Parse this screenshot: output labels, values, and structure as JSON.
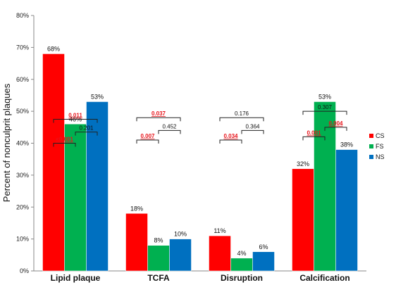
{
  "chart_data": {
    "type": "bar",
    "title": "",
    "xlabel": "",
    "ylabel": "Percent of nonculprit plaques",
    "ylim": [
      0,
      80
    ],
    "yticks": [
      "0%",
      "10%",
      "20%",
      "30%",
      "40%",
      "50%",
      "60%",
      "70%",
      "80%"
    ],
    "categories": [
      "Lipid plaque",
      "TCFA",
      "Disruption",
      "Calcification"
    ],
    "series": [
      {
        "name": "CS",
        "color": "#ff0000",
        "values": [
          68,
          18,
          11,
          32
        ],
        "labels": [
          "68%",
          "18%",
          "11%",
          "32%"
        ]
      },
      {
        "name": "FS",
        "color": "#00b050",
        "values": [
          46,
          8,
          4,
          53
        ],
        "labels": [
          "46%",
          "8%",
          "4%",
          "53%"
        ]
      },
      {
        "name": "NS",
        "color": "#0070c0",
        "values": [
          53,
          10,
          6,
          38
        ],
        "labels": [
          "53%",
          "10%",
          "6%",
          "38%"
        ]
      }
    ],
    "legend": {
      "position": "right",
      "entries": [
        "CS",
        "FS",
        "NS"
      ]
    },
    "comparisons": [
      {
        "category": 0,
        "from": 0,
        "to": 1,
        "label": "<0.001",
        "significant": true,
        "level": 40
      },
      {
        "category": 0,
        "from": 1,
        "to": 2,
        "label": "0.201",
        "significant": false,
        "level": 43.5
      },
      {
        "category": 0,
        "from": 0,
        "to": 2,
        "label": "0.011",
        "significant": true,
        "level": 47.5
      },
      {
        "category": 1,
        "from": 0,
        "to": 1,
        "label": "0.007",
        "significant": true,
        "level": 41
      },
      {
        "category": 1,
        "from": 1,
        "to": 2,
        "label": "0.452",
        "significant": false,
        "level": 44
      },
      {
        "category": 1,
        "from": 0,
        "to": 2,
        "label": "0.037",
        "significant": true,
        "level": 48
      },
      {
        "category": 2,
        "from": 0,
        "to": 1,
        "label": "0.034",
        "significant": true,
        "level": 41
      },
      {
        "category": 2,
        "from": 1,
        "to": 2,
        "label": "0.364",
        "significant": false,
        "level": 44
      },
      {
        "category": 2,
        "from": 0,
        "to": 2,
        "label": "0.176",
        "significant": false,
        "level": 48
      },
      {
        "category": 3,
        "from": 0,
        "to": 1,
        "label": "0.001",
        "significant": true,
        "level": 42
      },
      {
        "category": 3,
        "from": 1,
        "to": 2,
        "label": "0.004",
        "significant": true,
        "level": 45
      },
      {
        "category": 3,
        "from": 0,
        "to": 2,
        "label": "0.307",
        "significant": false,
        "level": 50
      }
    ]
  }
}
